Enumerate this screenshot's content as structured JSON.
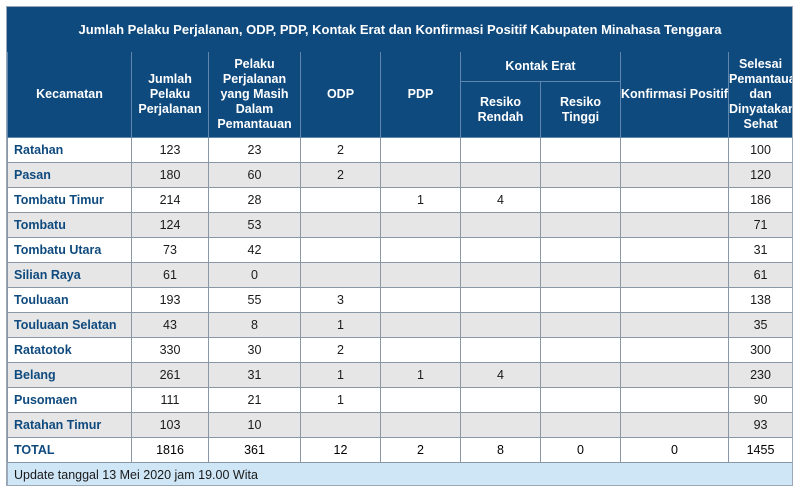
{
  "title": "Jumlah Pelaku Perjalanan, ODP, PDP, Kontak Erat dan Konfirmasi Positif Kabupaten Minahasa Tenggara",
  "headers": {
    "kecamatan": "Kecamatan",
    "jumlah_pelaku": "Jumlah Pelaku Perjalanan",
    "pelaku_pemantauan": "Pelaku Perjalanan yang Masih Dalam Pemantauan",
    "odp": "ODP",
    "pdp": "PDP",
    "kontak_erat": "Kontak Erat",
    "resiko_rendah": "Resiko Rendah",
    "resiko_tinggi": "Resiko Tinggi",
    "konfirmasi": "Konfirmasi Positif",
    "selesai": "Selesai Pemantauan dan Dinyatakan Sehat"
  },
  "rows": [
    {
      "kecamatan": "Ratahan",
      "jumlah": "123",
      "pemantauan": "23",
      "odp": "2",
      "pdp": "",
      "rendah": "",
      "tinggi": "",
      "konfirmasi": "",
      "selesai": "100"
    },
    {
      "kecamatan": "Pasan",
      "jumlah": "180",
      "pemantauan": "60",
      "odp": "2",
      "pdp": "",
      "rendah": "",
      "tinggi": "",
      "konfirmasi": "",
      "selesai": "120"
    },
    {
      "kecamatan": "Tombatu Timur",
      "jumlah": "214",
      "pemantauan": "28",
      "odp": "",
      "pdp": "1",
      "rendah": "4",
      "tinggi": "",
      "konfirmasi": "",
      "selesai": "186"
    },
    {
      "kecamatan": "Tombatu",
      "jumlah": "124",
      "pemantauan": "53",
      "odp": "",
      "pdp": "",
      "rendah": "",
      "tinggi": "",
      "konfirmasi": "",
      "selesai": "71"
    },
    {
      "kecamatan": "Tombatu Utara",
      "jumlah": "73",
      "pemantauan": "42",
      "odp": "",
      "pdp": "",
      "rendah": "",
      "tinggi": "",
      "konfirmasi": "",
      "selesai": "31"
    },
    {
      "kecamatan": "Silian Raya",
      "jumlah": "61",
      "pemantauan": "0",
      "odp": "",
      "pdp": "",
      "rendah": "",
      "tinggi": "",
      "konfirmasi": "",
      "selesai": "61"
    },
    {
      "kecamatan": "Touluaan",
      "jumlah": "193",
      "pemantauan": "55",
      "odp": "3",
      "pdp": "",
      "rendah": "",
      "tinggi": "",
      "konfirmasi": "",
      "selesai": "138"
    },
    {
      "kecamatan": "Touluaan Selatan",
      "jumlah": "43",
      "pemantauan": "8",
      "odp": "1",
      "pdp": "",
      "rendah": "",
      "tinggi": "",
      "konfirmasi": "",
      "selesai": "35"
    },
    {
      "kecamatan": "Ratatotok",
      "jumlah": "330",
      "pemantauan": "30",
      "odp": "2",
      "pdp": "",
      "rendah": "",
      "tinggi": "",
      "konfirmasi": "",
      "selesai": "300"
    },
    {
      "kecamatan": "Belang",
      "jumlah": "261",
      "pemantauan": "31",
      "odp": "1",
      "pdp": "1",
      "rendah": "4",
      "tinggi": "",
      "konfirmasi": "",
      "selesai": "230"
    },
    {
      "kecamatan": "Pusomaen",
      "jumlah": "111",
      "pemantauan": "21",
      "odp": "1",
      "pdp": "",
      "rendah": "",
      "tinggi": "",
      "konfirmasi": "",
      "selesai": "90"
    },
    {
      "kecamatan": "Ratahan Timur",
      "jumlah": "103",
      "pemantauan": "10",
      "odp": "",
      "pdp": "",
      "rendah": "",
      "tinggi": "",
      "konfirmasi": "",
      "selesai": "93"
    }
  ],
  "total": {
    "kecamatan": "TOTAL",
    "jumlah": "1816",
    "pemantauan": "361",
    "odp": "12",
    "pdp": "2",
    "rendah": "8",
    "tinggi": "0",
    "konfirmasi": "0",
    "selesai": "1455"
  },
  "footer": "Update tanggal 13 Mei 2020 jam 19.00 Wita",
  "colors": {
    "header": "#0f4a7e",
    "alt_row": "#e6e6e6",
    "footer": "#cfe6f6"
  }
}
